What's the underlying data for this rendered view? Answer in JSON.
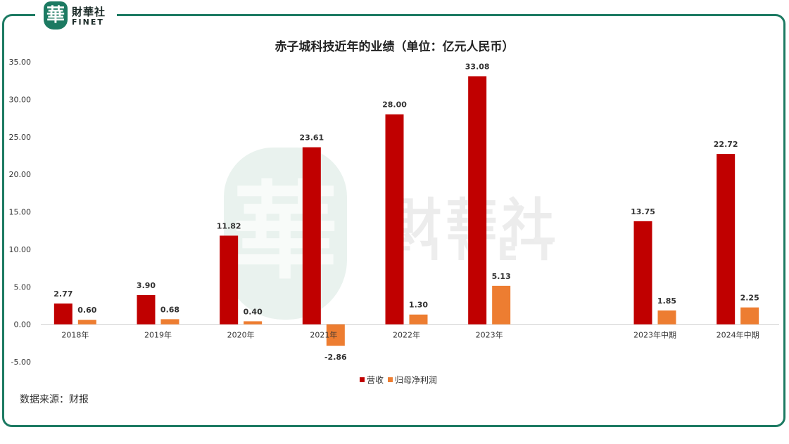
{
  "brand": {
    "logo_glyph": "華",
    "name_cn": "財華社",
    "name_en": "FINET"
  },
  "watermark": {
    "glyph": "華",
    "name_cn": "財華社",
    "name_en": "FINET"
  },
  "source_note": "数据来源：财报",
  "colors": {
    "frame": "#1c7a62",
    "revenue": "#c00000",
    "profit": "#ed7d31"
  },
  "chart_data": {
    "type": "bar",
    "title": "赤子城科技近年的业绩（单位：亿元人民币）",
    "categories": [
      "2018年",
      "2019年",
      "2020年",
      "2021年",
      "2022年",
      "2023年",
      "",
      "2023年中期",
      "2024年中期"
    ],
    "series": [
      {
        "name": "营收",
        "color": "#c00000",
        "values": [
          2.77,
          3.9,
          11.82,
          23.61,
          28.0,
          33.08,
          null,
          13.75,
          22.72
        ]
      },
      {
        "name": "归母净利润",
        "color": "#ed7d31",
        "values": [
          0.6,
          0.68,
          0.4,
          -2.86,
          1.3,
          5.13,
          null,
          1.85,
          2.25
        ]
      }
    ],
    "ylim": [
      -5,
      35
    ],
    "yticks": [
      "-5.00",
      "0.00",
      "5.00",
      "10.00",
      "15.00",
      "20.00",
      "25.00",
      "30.00",
      "35.00"
    ],
    "grid": false,
    "legend": "bottom"
  }
}
